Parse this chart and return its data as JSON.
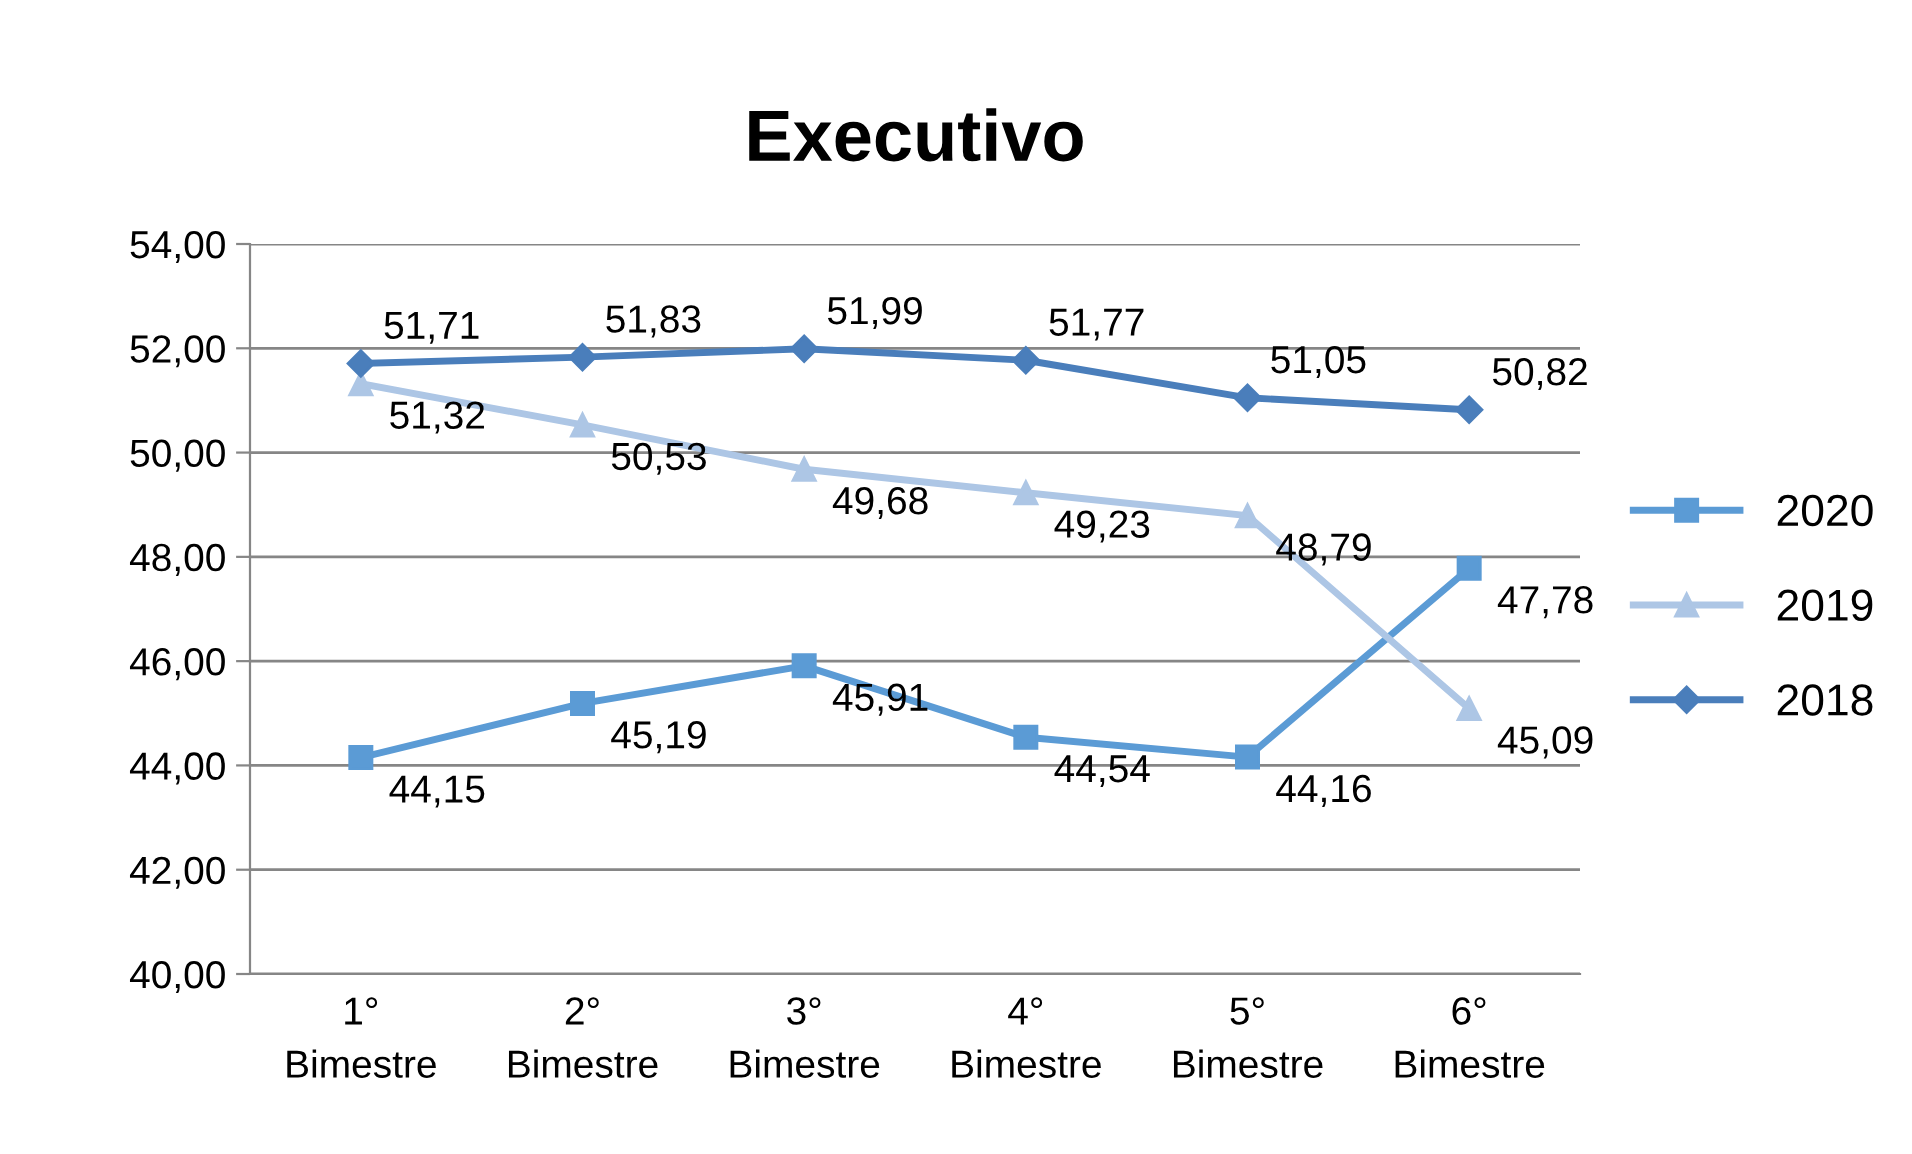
{
  "chart_data": {
    "type": "line",
    "title": "Executivo",
    "categories": [
      "1°\nBimestre",
      "2°\nBimestre",
      "3°\nBimestre",
      "4°\nBimestre",
      "5°\nBimestre",
      "6°\nBimestre"
    ],
    "series": [
      {
        "name": "2020",
        "color": "#5b9bd5",
        "marker": "square",
        "values": [
          44.15,
          45.19,
          45.91,
          44.54,
          44.16,
          47.78
        ],
        "value_labels": [
          "44,15",
          "45,19",
          "45,91",
          "44,54",
          "44,16",
          "47,78"
        ]
      },
      {
        "name": "2019",
        "color": "#adc6e5",
        "marker": "triangle",
        "values": [
          51.32,
          50.53,
          49.68,
          49.23,
          48.79,
          45.09
        ],
        "value_labels": [
          "51,32",
          "50,53",
          "49,68",
          "49,23",
          "48,79",
          "45,09"
        ]
      },
      {
        "name": "2018",
        "color": "#4a7ebb",
        "marker": "diamond",
        "values": [
          51.71,
          51.83,
          51.99,
          51.77,
          51.05,
          50.82
        ],
        "value_labels": [
          "51,71",
          "51,83",
          "51,99",
          "51,77",
          "51,05",
          "50,82"
        ]
      }
    ],
    "ylim": [
      40,
      54
    ],
    "yticks": [
      {
        "value": 40,
        "label": "40,00"
      },
      {
        "value": 42,
        "label": "42,00"
      },
      {
        "value": 44,
        "label": "44,00"
      },
      {
        "value": 46,
        "label": "46,00"
      },
      {
        "value": 48,
        "label": "48,00"
      },
      {
        "value": 50,
        "label": "50,00"
      },
      {
        "value": 52,
        "label": "52,00"
      },
      {
        "value": 54,
        "label": "54,00"
      }
    ],
    "grid": "y",
    "legend": "right",
    "line_style": "solid"
  }
}
